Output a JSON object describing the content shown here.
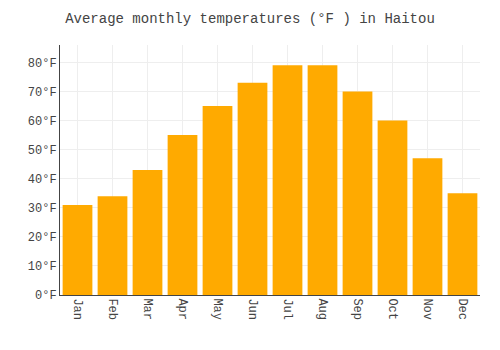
{
  "chart_data": {
    "type": "bar",
    "title": "Average monthly temperatures (°F ) in Haitou",
    "categories": [
      "Jan",
      "Feb",
      "Mar",
      "Apr",
      "May",
      "Jun",
      "Jul",
      "Aug",
      "Sep",
      "Oct",
      "Nov",
      "Dec"
    ],
    "values": [
      31,
      34,
      43,
      55,
      65,
      73,
      79,
      79,
      70,
      60,
      47,
      35
    ],
    "color": "#FFAA00",
    "ylim": [
      0,
      86
    ],
    "yticks": [
      {
        "value": 0,
        "label": "0°F"
      },
      {
        "value": 10,
        "label": "10°F"
      },
      {
        "value": 20,
        "label": "20°F"
      },
      {
        "value": 30,
        "label": "30°F"
      },
      {
        "value": 40,
        "label": "40°F"
      },
      {
        "value": 50,
        "label": "50°F"
      },
      {
        "value": 60,
        "label": "60°F"
      },
      {
        "value": 70,
        "label": "70°F"
      },
      {
        "value": 80,
        "label": "80°F"
      }
    ],
    "grid": true
  }
}
